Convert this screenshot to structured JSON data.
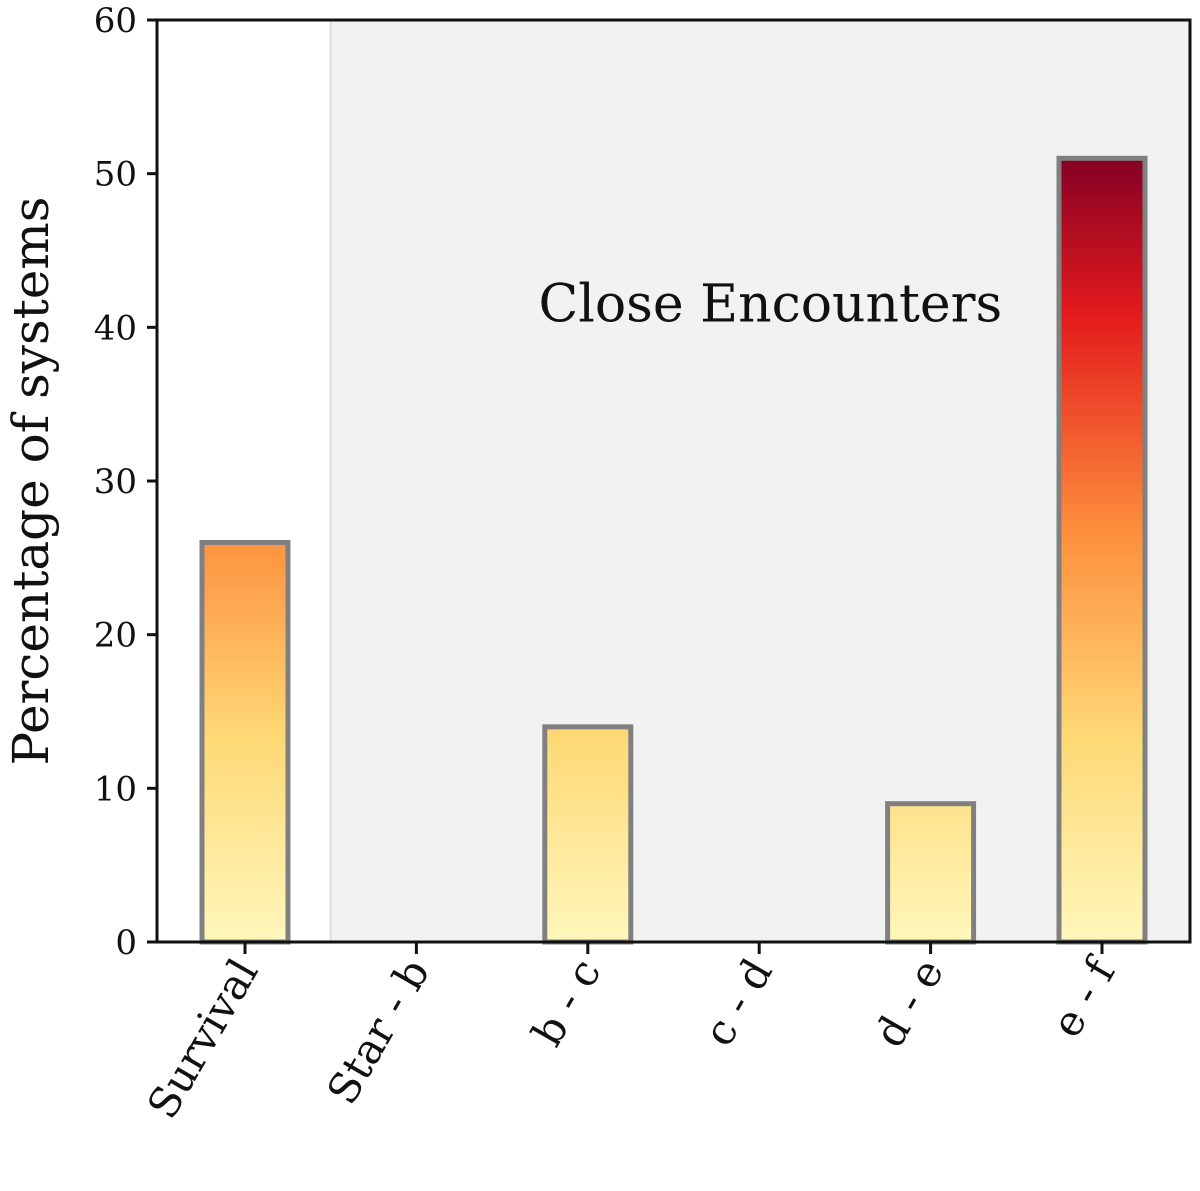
{
  "chart_data": {
    "type": "bar",
    "categories": [
      "Survival",
      "Star - b",
      "b - c",
      "c - d",
      "d - e",
      "e - f"
    ],
    "values": [
      26,
      0,
      14,
      0,
      9,
      51
    ],
    "title": "",
    "xlabel": "",
    "ylabel": "Percentage of systems",
    "ylim": [
      0,
      60
    ],
    "yticks": [
      0,
      10,
      20,
      30,
      40,
      50,
      60
    ],
    "grid": false,
    "annotation": "Close Encounters",
    "shaded_region": {
      "from_category": "Star - b",
      "to_category": "e - f",
      "color": "#f2f2f2"
    },
    "colors": {
      "bar_edge": "#808080",
      "gradient_low": "#fff7bc",
      "gradient_mid": "#fed976",
      "gradient_orange": "#fd8d3c",
      "gradient_red": "#e31a1c",
      "gradient_high": "#800026"
    }
  }
}
